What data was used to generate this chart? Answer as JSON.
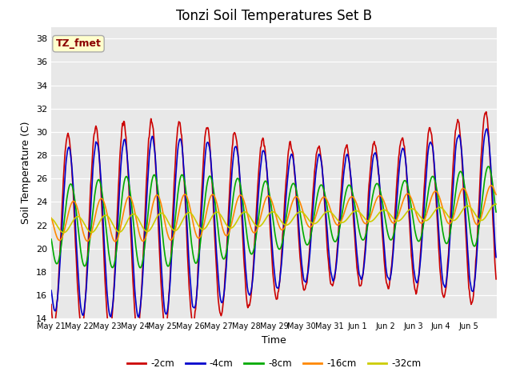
{
  "title": "Tonzi Soil Temperatures Set B",
  "xlabel": "Time",
  "ylabel": "Soil Temperature (C)",
  "ylim": [
    14,
    39
  ],
  "yticks": [
    14,
    16,
    18,
    20,
    22,
    24,
    26,
    28,
    30,
    32,
    34,
    36,
    38
  ],
  "annotation_text": "TZ_fmet",
  "annotation_color": "#8B0000",
  "annotation_bg": "#FFFFCC",
  "annotation_border": "#AAAAAA",
  "bg_color": "#E8E8E8",
  "series": {
    "-2cm": {
      "color": "#CC0000",
      "lw": 1.2
    },
    "-4cm": {
      "color": "#0000CC",
      "lw": 1.2
    },
    "-8cm": {
      "color": "#00AA00",
      "lw": 1.2
    },
    "-16cm": {
      "color": "#FF8800",
      "lw": 1.2
    },
    "-32cm": {
      "color": "#CCCC00",
      "lw": 1.2
    }
  },
  "x_tick_labels": [
    "May 21",
    "May 22",
    "May 23",
    "May 24",
    "May 25",
    "May 26",
    "May 27",
    "May 28",
    "May 29",
    "May 30",
    "May 31",
    "Jun 1",
    "Jun 2",
    "Jun 3",
    "Jun 4",
    "Jun 5"
  ],
  "n_days": 16,
  "pts_per_day": 48
}
